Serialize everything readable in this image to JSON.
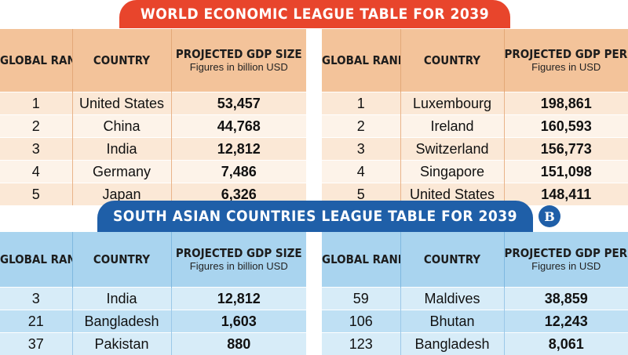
{
  "banners": {
    "world": "WORLD ECONOMIC LEAGUE TABLE FOR 2039",
    "south_asia": "SOUTH ASIAN COUNTRIES LEAGUE TABLE FOR 2039",
    "logo_letter": "B"
  },
  "headers": {
    "rank": "GLOBAL RANK",
    "country": "COUNTRY",
    "gdp_size": "PROJECTED GDP SIZE",
    "gdp_size_note": "Figures in billion USD",
    "gdp_per_capita": "PROJECTED GDP PER CAPITA",
    "gdp_per_capita_note": "Figures in USD"
  },
  "world_gdp": [
    {
      "rank": "1",
      "country": "United States",
      "value": "53,457"
    },
    {
      "rank": "2",
      "country": "China",
      "value": "44,768"
    },
    {
      "rank": "3",
      "country": "India",
      "value": "12,812"
    },
    {
      "rank": "4",
      "country": "Germany",
      "value": "7,486"
    },
    {
      "rank": "5",
      "country": "Japan",
      "value": "6,326"
    }
  ],
  "world_per_capita": [
    {
      "rank": "1",
      "country": "Luxembourg",
      "value": "198,861"
    },
    {
      "rank": "2",
      "country": "Ireland",
      "value": "160,593"
    },
    {
      "rank": "3",
      "country": "Switzerland",
      "value": "156,773"
    },
    {
      "rank": "4",
      "country": "Singapore",
      "value": "151,098"
    },
    {
      "rank": "5",
      "country": "United States",
      "value": "148,411"
    }
  ],
  "south_gdp": [
    {
      "rank": "3",
      "country": "India",
      "value": "12,812"
    },
    {
      "rank": "21",
      "country": "Bangladesh",
      "value": "1,603"
    },
    {
      "rank": "37",
      "country": "Pakistan",
      "value": "880"
    }
  ],
  "south_per_capita": [
    {
      "rank": "59",
      "country": "Maldives",
      "value": "38,859"
    },
    {
      "rank": "106",
      "country": "Bhutan",
      "value": "12,243"
    },
    {
      "rank": "123",
      "country": "Bangladesh",
      "value": "8,061"
    }
  ]
}
